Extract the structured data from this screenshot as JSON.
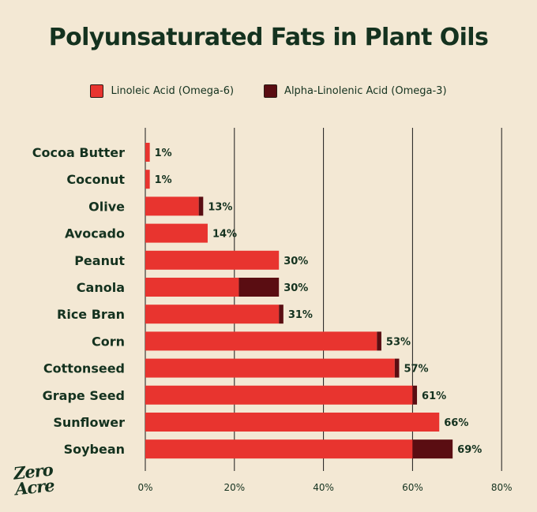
{
  "title": "Polyunsaturated Fats in Plant Oils",
  "legend": [
    {
      "label": "Linoleic Acid (Omega-6)",
      "color": "#e8342f"
    },
    {
      "label": "Alpha-Linolenic Acid (Omega-3)",
      "color": "#5a0d12"
    }
  ],
  "logo": {
    "line1": "Zero",
    "line2": "Acre"
  },
  "chart_data": {
    "type": "bar",
    "orientation": "horizontal",
    "stacked": true,
    "title": "Polyunsaturated Fats in Plant Oils",
    "categories": [
      "Cocoa Butter",
      "Coconut",
      "Olive",
      "Avocado",
      "Peanut",
      "Canola",
      "Rice Bran",
      "Corn",
      "Cottonseed",
      "Grape Seed",
      "Sunflower",
      "Soybean"
    ],
    "series": [
      {
        "name": "Linoleic Acid (Omega-6)",
        "color": "#e8342f",
        "values": [
          1,
          1,
          12,
          14,
          30,
          21,
          30,
          52,
          56,
          60,
          66,
          60
        ]
      },
      {
        "name": "Alpha-Linolenic Acid (Omega-3)",
        "color": "#5a0d12",
        "values": [
          0,
          0,
          1,
          0,
          0,
          9,
          1,
          1,
          1,
          1,
          0,
          9
        ]
      }
    ],
    "totals": [
      "1%",
      "1%",
      "13%",
      "14%",
      "30%",
      "30%",
      "31%",
      "53%",
      "57%",
      "61%",
      "66%",
      "69%"
    ],
    "xlim": [
      0,
      80
    ],
    "xticks": [
      "0%",
      "20%",
      "40%",
      "60%",
      "80%"
    ],
    "grid": true,
    "legend_position": "top"
  }
}
